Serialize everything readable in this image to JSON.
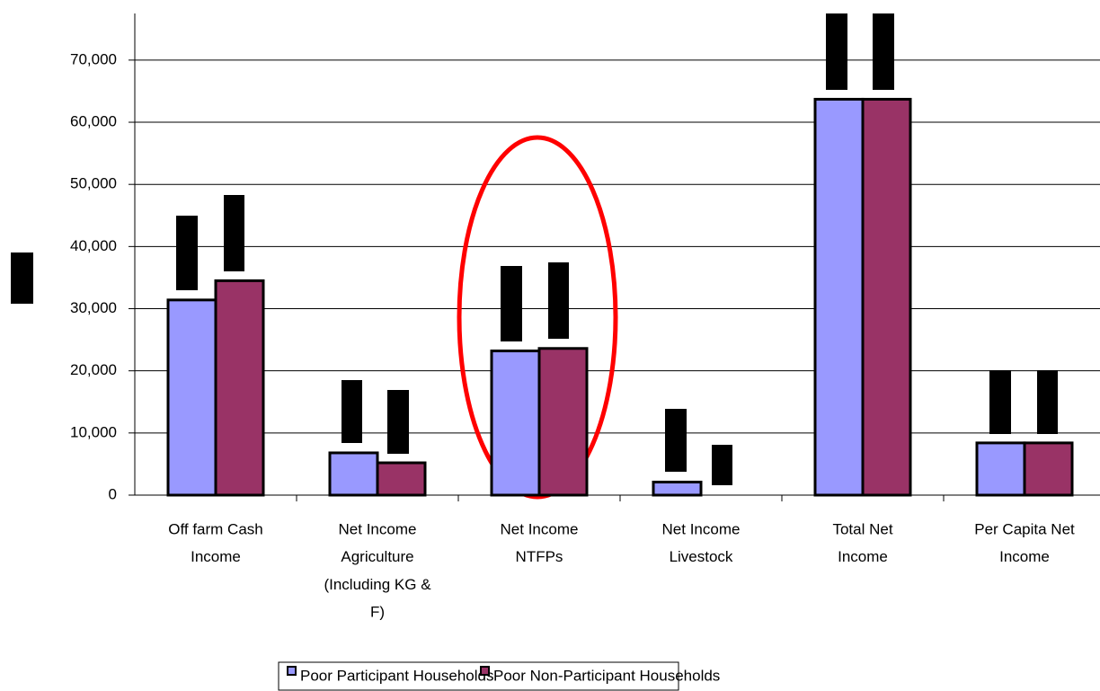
{
  "chart_data": {
    "type": "bar",
    "categories": [
      [
        "Off farm Cash",
        "Income"
      ],
      [
        "Net Income",
        "Agriculture",
        "(Including KG &",
        "F)"
      ],
      [
        "Net Income",
        "NTFPs"
      ],
      [
        "Net Income",
        "Livestock"
      ],
      [
        "Total Net",
        "Income"
      ],
      [
        "Per Capita Net",
        "Income"
      ]
    ],
    "series": [
      {
        "name": "Poor Participant Households",
        "color": "#9999ff",
        "values": [
          31400,
          6800,
          23200,
          2100,
          63700,
          8400
        ]
      },
      {
        "name": "Poor Non-Participant Households",
        "color": "#993366",
        "values": [
          34500,
          5200,
          23600,
          0,
          63700,
          8400
        ]
      }
    ],
    "ylim": [
      0,
      77500
    ],
    "yticks": [
      0,
      {
        "value": 10000,
        "label": "10,000"
      },
      {
        "value": 20000,
        "label": "20,000"
      },
      {
        "value": 30000,
        "label": "30,000"
      },
      {
        "value": 40000,
        "label": "40,000"
      },
      {
        "value": 50000,
        "label": "50,000"
      },
      {
        "value": 60000,
        "label": "60,000"
      },
      {
        "value": 70000,
        "label": "70,000"
      }
    ],
    "grid": true,
    "legend": "bottom"
  }
}
